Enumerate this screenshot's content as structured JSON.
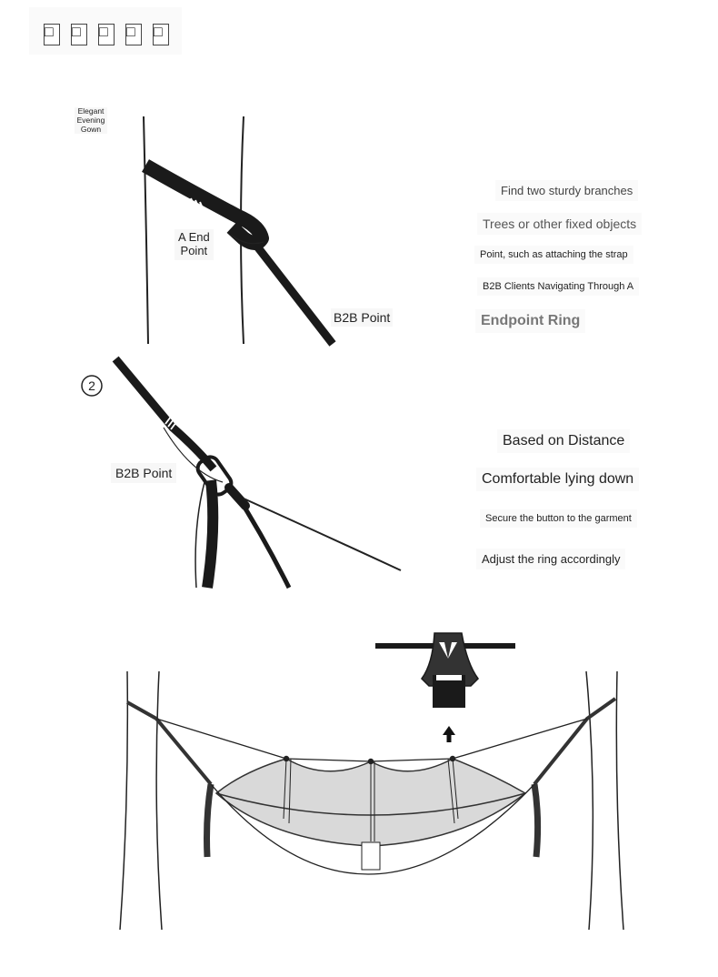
{
  "header": {
    "boxes": [
      "□",
      "□",
      "□",
      "□",
      "□"
    ]
  },
  "step1": {
    "tag_lines": [
      "Elegant",
      "Evening",
      "Gown"
    ],
    "a_end_line1": "A End",
    "a_end_line2": "Point",
    "b2b_label": "B2B Point",
    "notes": [
      "Find two sturdy branches",
      "Trees or other fixed objects",
      "Point, such as attaching the strap",
      "B2B Clients Navigating Through A",
      "Endpoint Ring"
    ]
  },
  "step2": {
    "number": "2",
    "b2b_label": "B2B Point",
    "notes": [
      "Based on Distance",
      "Comfortable lying down",
      "Secure the button to the garment",
      "Adjust the ring accordingly"
    ]
  },
  "colors": {
    "strap": "#1a1a1a",
    "net": "#d9d9d9",
    "line": "#222222",
    "note_gray": "#777777"
  },
  "icons": [
    "up-arrow-icon",
    "clip-icon",
    "circled-number-icon"
  ]
}
